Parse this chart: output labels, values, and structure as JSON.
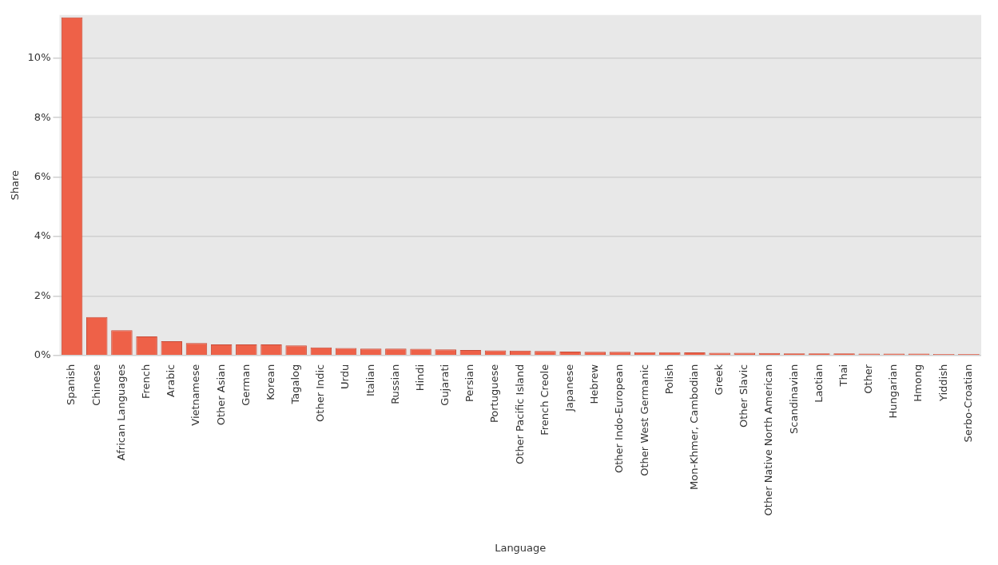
{
  "chart_data": {
    "type": "bar",
    "xlabel": "Language",
    "ylabel": "Share",
    "categories": [
      "Spanish",
      "Chinese",
      "African Languages",
      "French",
      "Arabic",
      "Vietnamese",
      "Other Asian",
      "German",
      "Korean",
      "Tagalog",
      "Other Indic",
      "Urdu",
      "Italian",
      "Russian",
      "Hindi",
      "Gujarati",
      "Persian",
      "Portuguese",
      "Other Pacific Island",
      "French Creole",
      "Japanese",
      "Hebrew",
      "Other Indo-European",
      "Other West Germanic",
      "Polish",
      "Mon-Khmer, Cambodian",
      "Greek",
      "Other Slavic",
      "Other Native North American",
      "Scandinavian",
      "Laotian",
      "Thai",
      "Other",
      "Hungarian",
      "Hmong",
      "Yiddish",
      "Serbo-Croatian"
    ],
    "values": [
      11.37,
      1.29,
      0.85,
      0.64,
      0.48,
      0.42,
      0.37,
      0.37,
      0.37,
      0.34,
      0.27,
      0.25,
      0.23,
      0.23,
      0.22,
      0.2,
      0.18,
      0.17,
      0.16,
      0.15,
      0.13,
      0.12,
      0.12,
      0.11,
      0.11,
      0.1,
      0.09,
      0.09,
      0.08,
      0.07,
      0.07,
      0.07,
      0.06,
      0.06,
      0.06,
      0.05,
      0.05
    ],
    "color": "#ee6148",
    "ylim": [
      0,
      11.45
    ],
    "yticks": [
      {
        "value": 0,
        "label": "0%"
      },
      {
        "value": 2,
        "label": "2%"
      },
      {
        "value": 4,
        "label": "4%"
      },
      {
        "value": 6,
        "label": "6%"
      },
      {
        "value": 8,
        "label": "8%"
      },
      {
        "value": 10,
        "label": "10%"
      }
    ],
    "grid": "y",
    "legend": false
  }
}
